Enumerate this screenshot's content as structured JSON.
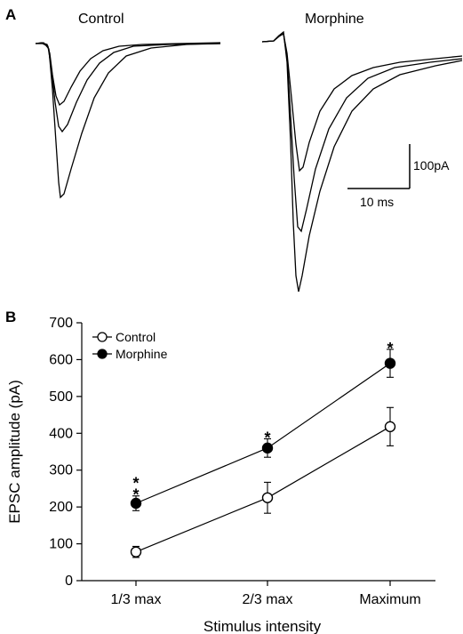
{
  "panels": {
    "a_letter": "A",
    "b_letter": "B"
  },
  "traces": {
    "control_title": "Control",
    "morphine_title": "Morphine",
    "scale_current": "100pA",
    "scale_time": "10 ms"
  },
  "chart_data": {
    "type": "line",
    "categories": [
      "1/3 max",
      "2/3 max",
      "Maximum"
    ],
    "xlabel": "Stimulus intensity",
    "ylabel": "EPSC amplitude (pA)",
    "ylim": [
      0,
      700
    ],
    "yticks": [
      0,
      100,
      200,
      300,
      400,
      500,
      600,
      700
    ],
    "legend_position": "top-left",
    "series": [
      {
        "name": "Control",
        "marker": "open-circle",
        "values": [
          78,
          225,
          418
        ],
        "errors": [
          15,
          42,
          52
        ]
      },
      {
        "name": "Morphine",
        "marker": "filled-circle",
        "values": [
          210,
          360,
          590
        ],
        "errors": [
          20,
          25,
          38
        ]
      }
    ],
    "significance": [
      "**",
      "*",
      "*"
    ]
  }
}
